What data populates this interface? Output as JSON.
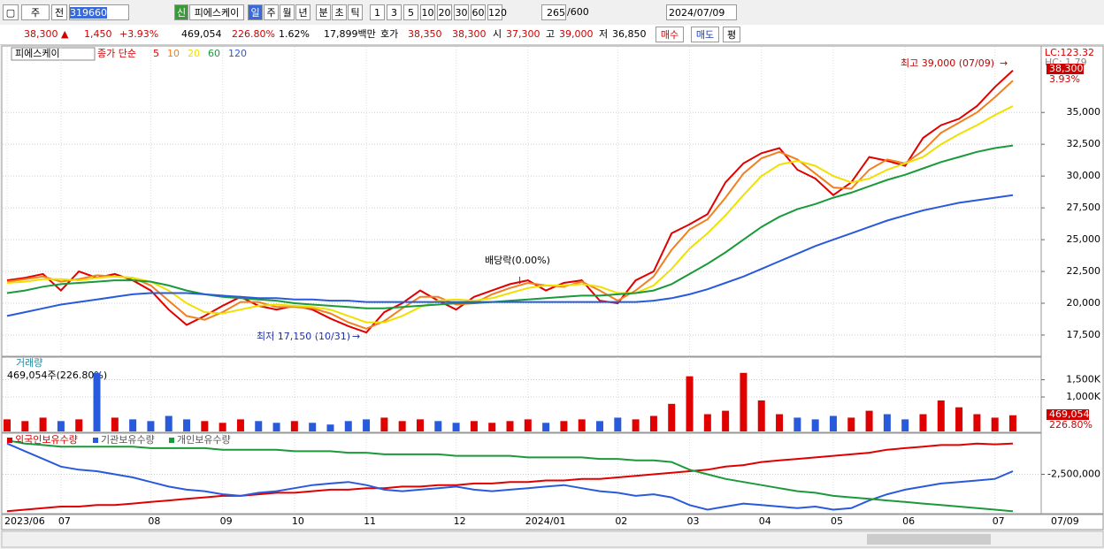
{
  "toolbar": {
    "market": "주",
    "prev": "전",
    "code": "319660",
    "tag": "신",
    "name": "피에스케이",
    "periods": [
      "일",
      "주",
      "월",
      "년",
      "분",
      "초",
      "틱"
    ],
    "intervals": [
      "1",
      "3",
      "5",
      "10",
      "20",
      "30",
      "60",
      "120"
    ],
    "count": "265",
    "max_count": "/600",
    "date": "2024/07/09"
  },
  "quote": {
    "price": "38,300 ▲",
    "change": "1,450",
    "change_rate": "+3.93%",
    "volume": "469,054",
    "volume_rate": "226.80%",
    "turnover": "1.62%",
    "amount": "17,899백만",
    "ask_label": "호가",
    "ask": "38,350",
    "bid": "38,300",
    "open_label": "시",
    "open": "37,300",
    "high_label": "고",
    "high": "39,000",
    "low_label": "저",
    "low": "36,850",
    "buy": "매수",
    "sell": "매도",
    "avg": "평"
  },
  "x_axis": {
    "categories": [
      "2023/06",
      null,
      null,
      "07",
      null,
      null,
      null,
      null,
      "08",
      null,
      null,
      null,
      "09",
      null,
      null,
      null,
      "10",
      null,
      null,
      null,
      "11",
      null,
      null,
      null,
      null,
      "12",
      null,
      null,
      null,
      "2024/01",
      null,
      null,
      null,
      null,
      "02",
      null,
      null,
      null,
      "03",
      null,
      null,
      null,
      "04",
      null,
      null,
      null,
      "05",
      null,
      null,
      null,
      "06",
      null,
      null,
      null,
      null,
      "07",
      null
    ],
    "end_label": "07/09"
  },
  "price_chart": {
    "type": "line",
    "title": "피에스케이",
    "legend_prefix": "종가 단순",
    "lc": "LC:123.32",
    "hc": "HC: 1.79",
    "last_price": "38,300",
    "last_rate": "3.93%",
    "high_note": "최고 39,000 (07/09)",
    "low_note": "최저 17,150 (10/31)",
    "event_note": "배당락(0.00%)",
    "ylim": [
      15900,
      39950
    ],
    "yticks": [
      {
        "value": 17500,
        "label": "17,500"
      },
      {
        "value": 20000,
        "label": "20,000"
      },
      {
        "value": 22500,
        "label": "22,500"
      },
      {
        "value": 25000,
        "label": "25,000"
      },
      {
        "value": 27500,
        "label": "27,500"
      },
      {
        "value": 30000,
        "label": "30,000"
      },
      {
        "value": 32500,
        "label": "32,500"
      },
      {
        "value": 35000,
        "label": "35,000"
      }
    ],
    "series": [
      {
        "name": "5",
        "color": "#e00000",
        "values": [
          21800,
          22000,
          22300,
          21000,
          22500,
          22000,
          22300,
          21800,
          21000,
          19500,
          18300,
          19000,
          19800,
          20500,
          19800,
          19500,
          19800,
          19500,
          18800,
          18200,
          17700,
          19300,
          20000,
          21000,
          20200,
          19500,
          20500,
          21000,
          21500,
          21800,
          21000,
          21600,
          21800,
          20200,
          20000,
          21800,
          22500,
          25500,
          26200,
          27000,
          29500,
          31000,
          31800,
          32200,
          30500,
          29800,
          28500,
          29500,
          31500,
          31200,
          30800,
          33000,
          34000,
          34500,
          35500,
          37000,
          38300
        ]
      },
      {
        "name": "10",
        "color": "#f08020",
        "values": [
          21700,
          21900,
          22100,
          21700,
          21900,
          22200,
          22100,
          22000,
          21400,
          20200,
          19000,
          18700,
          19300,
          20100,
          20100,
          19700,
          19700,
          19600,
          19200,
          18500,
          18000,
          18600,
          19600,
          20500,
          20500,
          19900,
          20000,
          20700,
          21200,
          21600,
          21400,
          21300,
          21700,
          21000,
          20200,
          21000,
          22100,
          24200,
          25800,
          26600,
          28300,
          30200,
          31400,
          31900,
          31300,
          30200,
          29100,
          29000,
          30500,
          31300,
          31000,
          32000,
          33400,
          34200,
          35000,
          36200,
          37500
        ]
      },
      {
        "name": "20",
        "color": "#f0e000",
        "values": [
          21600,
          21700,
          21900,
          21900,
          21800,
          22000,
          22100,
          22000,
          21700,
          21000,
          20000,
          19300,
          19200,
          19500,
          19800,
          19900,
          19800,
          19700,
          19500,
          19000,
          18500,
          18500,
          19000,
          19700,
          20200,
          20300,
          20200,
          20400,
          20800,
          21200,
          21400,
          21400,
          21500,
          21300,
          20800,
          20800,
          21400,
          22700,
          24300,
          25500,
          26900,
          28500,
          30000,
          30900,
          31200,
          30800,
          30000,
          29500,
          29800,
          30500,
          31000,
          31500,
          32500,
          33300,
          34000,
          34800,
          35500
        ]
      },
      {
        "name": "60",
        "color": "#1a9a3a",
        "values": [
          20800,
          21000,
          21300,
          21500,
          21600,
          21700,
          21800,
          21800,
          21700,
          21400,
          21000,
          20700,
          20500,
          20400,
          20300,
          20200,
          20000,
          19900,
          19800,
          19700,
          19600,
          19600,
          19700,
          19800,
          19900,
          20000,
          20000,
          20100,
          20200,
          20300,
          20400,
          20500,
          20600,
          20600,
          20700,
          20800,
          21000,
          21500,
          22300,
          23100,
          24000,
          25000,
          26000,
          26800,
          27400,
          27800,
          28300,
          28700,
          29200,
          29700,
          30100,
          30600,
          31100,
          31500,
          31900,
          32200,
          32400
        ]
      },
      {
        "name": "120",
        "color": "#2a5adc",
        "values": [
          19000,
          19300,
          19600,
          19900,
          20100,
          20300,
          20500,
          20700,
          20800,
          20800,
          20800,
          20700,
          20600,
          20500,
          20400,
          20400,
          20300,
          20300,
          20200,
          20200,
          20100,
          20100,
          20100,
          20100,
          20100,
          20100,
          20100,
          20100,
          20100,
          20100,
          20100,
          20100,
          20100,
          20100,
          20100,
          20100,
          20200,
          20400,
          20700,
          21100,
          21600,
          22100,
          22700,
          23300,
          23900,
          24500,
          25000,
          25500,
          26000,
          26500,
          26900,
          27300,
          27600,
          27900,
          28100,
          28300,
          28500
        ]
      }
    ]
  },
  "volume_chart": {
    "type": "bar",
    "title": "거래량",
    "subtitle": "469,054주(226.80%)",
    "last_value": "469,054",
    "last_rate": "226.80%",
    "up_color": "#e00000",
    "down_color": "#2a5adc",
    "ylim": [
      0,
      2130000
    ],
    "yticks": [
      {
        "value": 1000000,
        "label": "1,000K"
      },
      {
        "value": 1500000,
        "label": "1,500K"
      }
    ],
    "values": [
      350000,
      300000,
      400000,
      300000,
      350000,
      1700000,
      400000,
      350000,
      300000,
      450000,
      350000,
      300000,
      250000,
      350000,
      300000,
      250000,
      300000,
      250000,
      200000,
      300000,
      350000,
      400000,
      300000,
      350000,
      300000,
      250000,
      300000,
      250000,
      300000,
      350000,
      250000,
      300000,
      350000,
      300000,
      400000,
      350000,
      450000,
      800000,
      1600000,
      500000,
      600000,
      1700000,
      900000,
      500000,
      400000,
      350000,
      450000,
      400000,
      600000,
      500000,
      350000,
      500000,
      900000,
      700000,
      500000,
      400000,
      469054
    ]
  },
  "holdings_chart": {
    "type": "line",
    "ylim": [
      -5000000,
      0
    ],
    "yticks": [
      {
        "value": -2500000,
        "label": "-2,500,000"
      }
    ],
    "series": [
      {
        "name": "외국인보유수량",
        "color": "#e00000",
        "values": [
          -4900000,
          -4800000,
          -4700000,
          -4600000,
          -4600000,
          -4500000,
          -4500000,
          -4400000,
          -4300000,
          -4200000,
          -4100000,
          -4000000,
          -3900000,
          -3900000,
          -3800000,
          -3700000,
          -3700000,
          -3600000,
          -3500000,
          -3500000,
          -3400000,
          -3400000,
          -3300000,
          -3300000,
          -3200000,
          -3200000,
          -3100000,
          -3100000,
          -3000000,
          -3000000,
          -2900000,
          -2900000,
          -2800000,
          -2800000,
          -2700000,
          -2600000,
          -2500000,
          -2400000,
          -2300000,
          -2200000,
          -2000000,
          -1900000,
          -1700000,
          -1600000,
          -1500000,
          -1400000,
          -1300000,
          -1200000,
          -1100000,
          -900000,
          -800000,
          -700000,
          -600000,
          -600000,
          -500000,
          -550000,
          -500000
        ]
      },
      {
        "name": "기관보유수량",
        "color": "#2a5adc",
        "values": [
          -500000,
          -1000000,
          -1500000,
          -2000000,
          -2200000,
          -2300000,
          -2500000,
          -2700000,
          -3000000,
          -3300000,
          -3500000,
          -3600000,
          -3800000,
          -3900000,
          -3700000,
          -3600000,
          -3400000,
          -3200000,
          -3100000,
          -3000000,
          -3200000,
          -3500000,
          -3600000,
          -3500000,
          -3400000,
          -3300000,
          -3500000,
          -3600000,
          -3500000,
          -3400000,
          -3300000,
          -3200000,
          -3400000,
          -3600000,
          -3700000,
          -3900000,
          -3800000,
          -4000000,
          -4500000,
          -4800000,
          -4600000,
          -4400000,
          -4500000,
          -4600000,
          -4700000,
          -4600000,
          -4800000,
          -4700000,
          -4200000,
          -3800000,
          -3500000,
          -3300000,
          -3100000,
          -3000000,
          -2900000,
          -2800000,
          -2300000
        ]
      },
      {
        "name": "개인보유수량",
        "color": "#1a9a3a",
        "values": [
          -300000,
          -500000,
          -600000,
          -700000,
          -700000,
          -700000,
          -700000,
          -700000,
          -800000,
          -800000,
          -800000,
          -800000,
          -900000,
          -900000,
          -900000,
          -900000,
          -1000000,
          -1000000,
          -1000000,
          -1100000,
          -1100000,
          -1200000,
          -1200000,
          -1200000,
          -1200000,
          -1300000,
          -1300000,
          -1300000,
          -1300000,
          -1400000,
          -1400000,
          -1400000,
          -1400000,
          -1500000,
          -1500000,
          -1600000,
          -1600000,
          -1700000,
          -2200000,
          -2500000,
          -2800000,
          -3000000,
          -3200000,
          -3400000,
          -3600000,
          -3700000,
          -3900000,
          -4000000,
          -4100000,
          -4200000,
          -4300000,
          -4400000,
          -4500000,
          -4600000,
          -4700000,
          -4800000,
          -4900000
        ]
      }
    ]
  }
}
